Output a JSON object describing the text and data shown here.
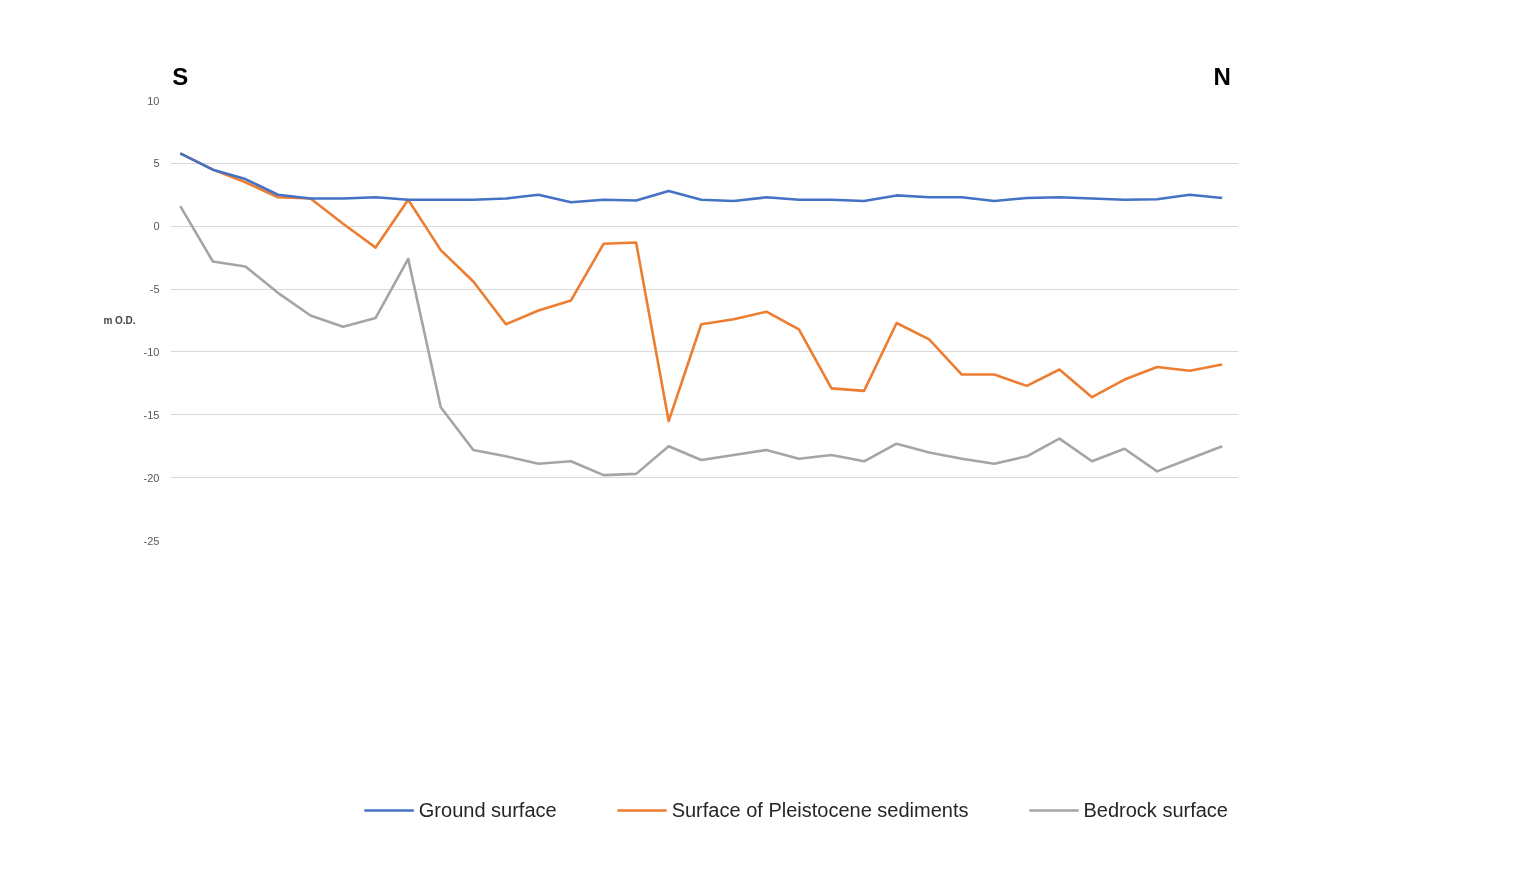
{
  "chart_data": {
    "type": "line",
    "categories": [
      null,
      null,
      null,
      null,
      null,
      null,
      null,
      null,
      null,
      null,
      null,
      null,
      null,
      null,
      null,
      null,
      null,
      null,
      null,
      null,
      null,
      null,
      null,
      null,
      null,
      null,
      null,
      null,
      null,
      null,
      null,
      null,
      null
    ],
    "series": [
      {
        "name": "Ground surface",
        "color": "#4472c4",
        "values": [
          5.8,
          4.5,
          3.75,
          2.5,
          2.2,
          2.2,
          2.3,
          2.1,
          2.1,
          2.1,
          2.2,
          2.5,
          1.9,
          2.1,
          2.05,
          2.8,
          2.1,
          2.0,
          2.3,
          2.1,
          2.1,
          2.0,
          2.45,
          2.3,
          2.3,
          2.0,
          2.25,
          2.3,
          2.2,
          2.1,
          2.15,
          2.5,
          2.25
        ]
      },
      {
        "name": "Surface of Pleistocene sediments",
        "color": "#ed7d31",
        "values": [
          5.8,
          4.5,
          3.5,
          2.3,
          2.2,
          0.2,
          -1.7,
          2.1,
          -1.9,
          -4.4,
          -7.8,
          -6.7,
          -5.9,
          -1.4,
          -1.3,
          -15.5,
          -7.8,
          -7.4,
          -6.8,
          -8.2,
          -12.9,
          -13.1,
          -7.7,
          -9.0,
          -11.8,
          -11.8,
          -12.7,
          -11.4,
          -13.6,
          -12.2,
          -11.2,
          -11.5,
          -11.0
        ]
      },
      {
        "name": "Bedrock surface",
        "color": "#a5a5a5",
        "values": [
          1.6,
          -2.8,
          -3.2,
          -5.3,
          -7.1,
          -8.0,
          -7.3,
          -2.6,
          -14.4,
          -17.8,
          -18.3,
          -18.9,
          -18.7,
          -19.8,
          -19.7,
          -17.5,
          -18.6,
          -18.2,
          -17.8,
          -18.5,
          -18.2,
          -18.7,
          -17.3,
          -18.0,
          -18.5,
          -18.9,
          -18.3,
          -16.9,
          -18.7,
          -17.7,
          -19.5,
          -18.5,
          -17.5
        ]
      }
    ],
    "ylabel": "m O.D.",
    "annotations": [
      "S",
      "N"
    ],
    "ylim": [
      -25,
      10
    ],
    "yticks": [
      -25,
      -20,
      -15,
      -10,
      -5,
      0,
      5,
      10
    ],
    "grid": "y",
    "legend": "bottom",
    "line_style": "solid",
    "marker": "none"
  }
}
